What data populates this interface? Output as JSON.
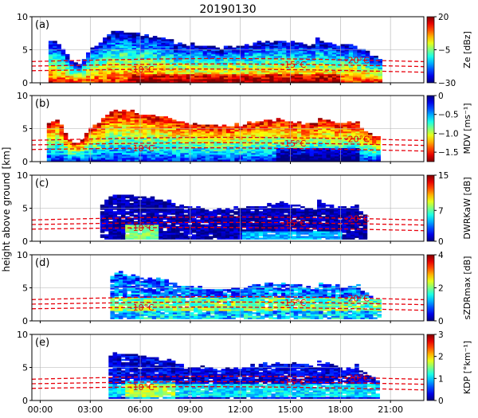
{
  "chart_data": {
    "type": "heatmap",
    "title": "20190130",
    "ylabel": "height above ground [km]",
    "x_ticks": [
      "00:00",
      "03:00",
      "06:00",
      "09:00",
      "12:00",
      "15:00",
      "18:00",
      "21:00"
    ],
    "x_tick_hours": [
      0,
      3,
      6,
      9,
      12,
      15,
      18,
      21
    ],
    "xlim_hours": [
      -0.5,
      23.0
    ],
    "ylim": [
      0,
      10
    ],
    "y_ticks": [
      0,
      5,
      10
    ],
    "grid": true,
    "isotherm_color": "#e8000b",
    "panels": [
      {
        "label": "(a)",
        "cbar_label": "Ze [dBz]",
        "cbar_ticks": [
          "20",
          "−5",
          "−30"
        ],
        "cbar_tick_values": [
          20,
          -5,
          -30
        ],
        "clim": [
          -30,
          20
        ],
        "colormap": "jet",
        "isotherm_labels": [
          {
            "text": "-10°C",
            "hour": 6.1
          },
          {
            "text": "-15°C",
            "hour": 15.2
          },
          {
            "text": "-20°C",
            "hour": 19.0
          }
        ]
      },
      {
        "label": "(b)",
        "cbar_label": "MDV [ms⁻¹]",
        "cbar_ticks": [
          "0",
          "−0.5",
          "−1.0",
          "−1.5"
        ],
        "cbar_tick_values": [
          0,
          -0.5,
          -1.0,
          -1.5
        ],
        "clim": [
          -1.75,
          0
        ],
        "colormap": "jet_r",
        "isotherm_labels": [
          {
            "text": "-10°C",
            "hour": 6.1
          },
          {
            "text": "-15°C",
            "hour": 15.2
          },
          {
            "text": "-20°C",
            "hour": 19.0
          }
        ]
      },
      {
        "label": "(c)",
        "cbar_label": "DWRKaW [dB]",
        "cbar_ticks": [
          "15",
          "7",
          "0"
        ],
        "cbar_tick_values": [
          15,
          7,
          0
        ],
        "clim": [
          0,
          15
        ],
        "colormap": "jet",
        "isotherm_labels": [
          {
            "text": "-10°C",
            "hour": 6.1
          },
          {
            "text": "-15°C",
            "hour": 15.2
          },
          {
            "text": "-20°C",
            "hour": 19.0
          }
        ]
      },
      {
        "label": "(d)",
        "cbar_label": "sZDRmax [dB]",
        "cbar_ticks": [
          "4",
          "2",
          "0"
        ],
        "cbar_tick_values": [
          4,
          2,
          0
        ],
        "clim": [
          0,
          4
        ],
        "colormap": "jet",
        "isotherm_labels": [
          {
            "text": "-10°C",
            "hour": 6.1
          },
          {
            "text": "-15°C",
            "hour": 15.2
          },
          {
            "text": "-20°C",
            "hour": 19.0
          }
        ]
      },
      {
        "label": "(e)",
        "cbar_label": "KDP [°km⁻¹]",
        "cbar_ticks": [
          "3",
          "2",
          "1",
          "0"
        ],
        "cbar_tick_values": [
          3,
          2,
          1,
          0
        ],
        "clim": [
          0,
          3
        ],
        "colormap": "jet",
        "isotherm_labels": [
          {
            "text": "-10°C",
            "hour": 6.1
          },
          {
            "text": "-15°C",
            "hour": 15.2
          },
          {
            "text": "-20°C",
            "hour": 19.0
          }
        ]
      }
    ]
  }
}
